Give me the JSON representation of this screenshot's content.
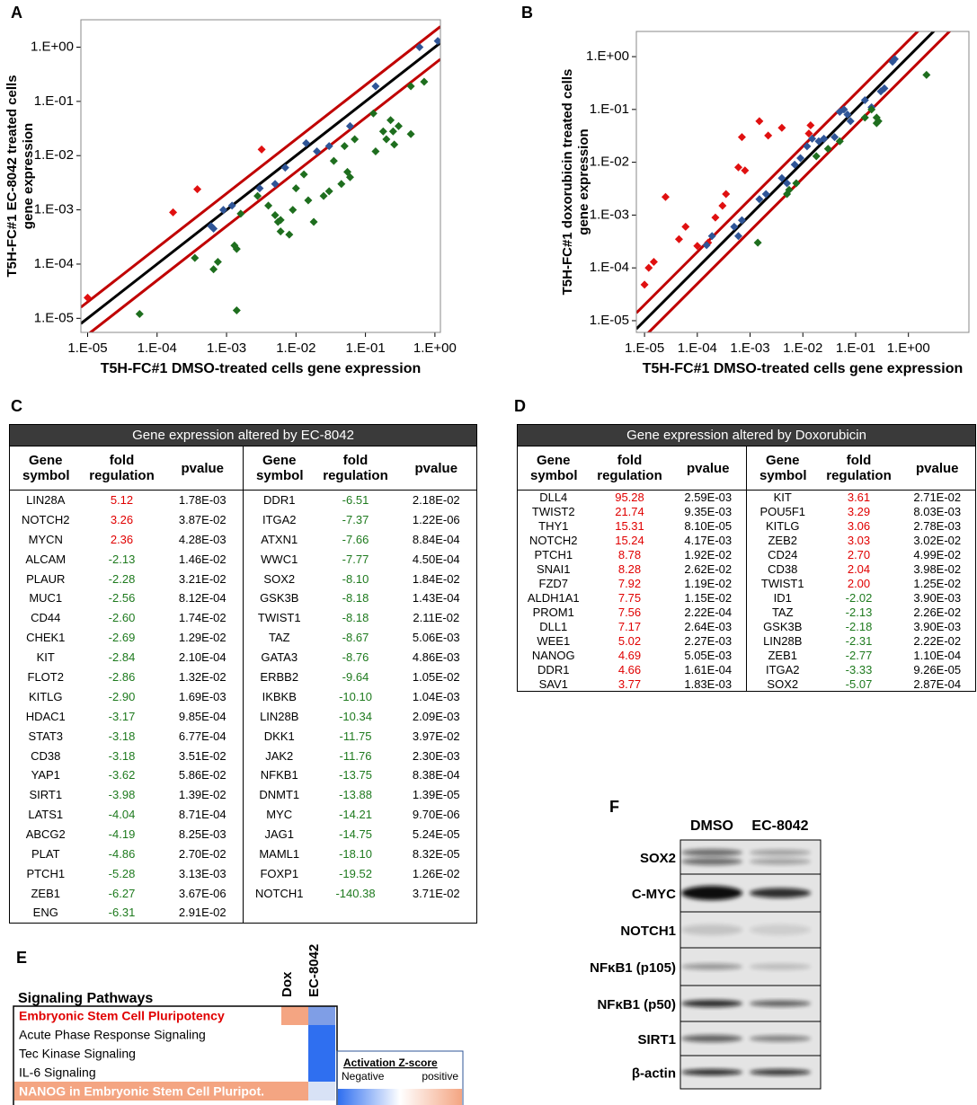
{
  "figure_labels": [
    "A",
    "B",
    "C",
    "D",
    "E",
    "F"
  ],
  "chart_data": [
    {
      "type": "scatter",
      "xlabel": "T5H-FC#1 DMSO-treated cells gene expression",
      "ylabel": [
        "T5H-FC#1 EC-8042 treated cells",
        "gene expression"
      ],
      "log_x": true,
      "log_y": true,
      "xlim": [
        8e-06,
        1.2
      ],
      "ylim": [
        5.5e-06,
        3.2
      ],
      "xticks": [
        {
          "value": 1e-05,
          "label": "1.E-05"
        },
        {
          "value": 0.0001,
          "label": "1.E-04"
        },
        {
          "value": 0.001,
          "label": "1.E-03"
        },
        {
          "value": 0.01,
          "label": "1.E-02"
        },
        {
          "value": 0.1,
          "label": "1.E-01"
        },
        {
          "value": 1,
          "label": "1.E+00"
        }
      ],
      "yticks": [
        {
          "value": 1e-05,
          "label": "1.E-05"
        },
        {
          "value": 0.0001,
          "label": "1.E-04"
        },
        {
          "value": 0.001,
          "label": "1.E-03"
        },
        {
          "value": 0.01,
          "label": "1.E-02"
        },
        {
          "value": 0.1,
          "label": "1.E-01"
        },
        {
          "value": 1,
          "label": "1.E+00"
        }
      ],
      "series": [
        {
          "color": "#e01010",
          "x": [
            1e-05,
            0.00017,
            0.00038,
            0.0032
          ],
          "values": [
            2.4e-05,
            0.0009,
            0.0024,
            0.013
          ]
        },
        {
          "color": "#2f5597",
          "x": [
            0.0006,
            0.00065,
            0.0009,
            0.0012,
            0.003,
            0.005,
            0.007,
            0.014,
            0.02,
            0.03,
            0.06,
            0.14,
            0.6,
            1.1
          ],
          "values": [
            0.0005,
            0.00045,
            0.001,
            0.0012,
            0.0025,
            0.003,
            0.006,
            0.017,
            0.012,
            0.015,
            0.035,
            0.19,
            1,
            1.3
          ]
        },
        {
          "color": "#1e6e1e",
          "x": [
            5.6e-05,
            0.00035,
            0.00065,
            0.00075,
            0.0014,
            0.0013,
            0.0014,
            0.0016,
            0.0028,
            0.004,
            0.005,
            0.0055,
            0.006,
            0.006,
            0.008,
            0.009,
            0.01,
            0.013,
            0.015,
            0.018,
            0.025,
            0.03,
            0.035,
            0.045,
            0.05,
            0.055,
            0.06,
            0.07,
            0.13,
            0.14,
            0.18,
            0.2,
            0.23,
            0.25,
            0.26,
            0.3,
            0.45,
            0.45,
            0.7
          ],
          "values": [
            1.2e-05,
            0.00013,
            8e-05,
            0.00011,
            1.4e-05,
            0.00022,
            0.00019,
            0.00085,
            0.0018,
            0.0012,
            0.0008,
            0.0006,
            0.0004,
            0.00065,
            0.00035,
            0.001,
            0.0025,
            0.0045,
            0.0015,
            0.0006,
            0.0018,
            0.0022,
            0.008,
            0.003,
            0.015,
            0.005,
            0.004,
            0.02,
            0.06,
            0.012,
            0.028,
            0.02,
            0.045,
            0.028,
            0.016,
            0.035,
            0.025,
            0.19,
            0.23
          ]
        }
      ]
    },
    {
      "type": "scatter",
      "xlabel": "T5H-FC#1 DMSO-treated cells gene expression",
      "ylabel": [
        "T5H-FC#1 doxorubicin  treated cells",
        "gene expression"
      ],
      "log_x": true,
      "log_y": true,
      "xlim": [
        7e-06,
        14
      ],
      "ylim": [
        6e-06,
        3
      ],
      "xticks": [
        {
          "value": 1e-05,
          "label": "1.E-05"
        },
        {
          "value": 0.0001,
          "label": "1.E-04"
        },
        {
          "value": 0.001,
          "label": "1.E-03"
        },
        {
          "value": 0.01,
          "label": "1.E-02"
        },
        {
          "value": 0.1,
          "label": "1.E-01"
        },
        {
          "value": 1,
          "label": "1.E+00"
        }
      ],
      "yticks": [
        {
          "value": 1e-05,
          "label": "1.E-05"
        },
        {
          "value": 0.0001,
          "label": "1.E-04"
        },
        {
          "value": 0.001,
          "label": "1.E-03"
        },
        {
          "value": 0.01,
          "label": "1.E-02"
        },
        {
          "value": 0.1,
          "label": "1.E-01"
        },
        {
          "value": 1,
          "label": "1.E+00"
        }
      ],
      "series": [
        {
          "color": "#e01010",
          "x": [
            1e-05,
            1.2e-05,
            1.5e-05,
            2.5e-05,
            4.5e-05,
            6e-05,
            0.0001,
            0.00016,
            0.00022,
            0.0003,
            0.00035,
            0.0006,
            0.0007,
            0.0008,
            0.0015,
            0.0022,
            0.004,
            0.013,
            0.014
          ],
          "values": [
            4.8e-05,
            0.0001,
            0.00013,
            0.0022,
            0.00035,
            0.0006,
            0.00026,
            0.0003,
            0.0009,
            0.0015,
            0.0025,
            0.008,
            0.03,
            0.007,
            0.06,
            0.032,
            0.045,
            0.035,
            0.05
          ]
        },
        {
          "color": "#2f5597",
          "x": [
            0.00015,
            0.00019,
            0.0005,
            0.0006,
            0.0007,
            0.0015,
            0.002,
            0.004,
            0.005,
            0.007,
            0.009,
            0.012,
            0.015,
            0.02,
            0.025,
            0.04,
            0.05,
            0.06,
            0.07,
            0.08,
            0.15,
            0.2,
            0.3,
            0.35,
            0.5,
            0.55
          ],
          "values": [
            0.00027,
            0.0004,
            0.0006,
            0.0004,
            0.0008,
            0.002,
            0.0025,
            0.005,
            0.004,
            0.009,
            0.012,
            0.02,
            0.028,
            0.025,
            0.028,
            0.03,
            0.09,
            0.1,
            0.08,
            0.06,
            0.15,
            0.11,
            0.22,
            0.25,
            0.8,
            0.9
          ]
        },
        {
          "color": "#1e6e1e",
          "x": [
            0.0014,
            0.005,
            0.0055,
            0.0075,
            0.018,
            0.03,
            0.05,
            0.15,
            0.2,
            0.25,
            0.25,
            0.27,
            2.2
          ],
          "values": [
            0.0003,
            0.0025,
            0.003,
            0.004,
            0.013,
            0.018,
            0.025,
            0.07,
            0.1,
            0.055,
            0.07,
            0.06,
            0.45
          ]
        }
      ]
    }
  ],
  "table_c": {
    "title": "Gene expression altered by EC-8042",
    "columns": [
      "Gene symbol",
      "fold regulation",
      "pvalue"
    ],
    "halves": [
      {
        "rows": [
          [
            "LIN28A",
            "5.12",
            "1.78E-03"
          ],
          [
            "NOTCH2",
            "3.26",
            "3.87E-02"
          ],
          [
            "MYCN",
            "2.36",
            "4.28E-03"
          ],
          [
            "ALCAM",
            "-2.13",
            "1.46E-02"
          ],
          [
            "PLAUR",
            "-2.28",
            "3.21E-02"
          ],
          [
            "MUC1",
            "-2.56",
            "8.12E-04"
          ],
          [
            "CD44",
            "-2.60",
            "1.74E-02"
          ],
          [
            "CHEK1",
            "-2.69",
            "1.29E-02"
          ],
          [
            "KIT",
            "-2.84",
            "2.10E-04"
          ],
          [
            "FLOT2",
            "-2.86",
            "1.32E-02"
          ],
          [
            "KITLG",
            "-2.90",
            "1.69E-03"
          ],
          [
            "HDAC1",
            "-3.17",
            "9.85E-04"
          ],
          [
            "STAT3",
            "-3.18",
            "6.77E-04"
          ],
          [
            "CD38",
            "-3.18",
            "3.51E-02"
          ],
          [
            "YAP1",
            "-3.62",
            "5.86E-02"
          ],
          [
            "SIRT1",
            "-3.98",
            "1.39E-02"
          ],
          [
            "LATS1",
            "-4.04",
            "8.71E-04"
          ],
          [
            "ABCG2",
            "-4.19",
            "8.25E-03"
          ],
          [
            "PLAT",
            "-4.86",
            "2.70E-02"
          ],
          [
            "PTCH1",
            "-5.28",
            "3.13E-03"
          ],
          [
            "ZEB1",
            "-6.27",
            "3.67E-06"
          ],
          [
            "ENG",
            "-6.31",
            "2.91E-02"
          ]
        ]
      },
      {
        "rows": [
          [
            "DDR1",
            "-6.51",
            "2.18E-02"
          ],
          [
            "ITGA2",
            "-7.37",
            "1.22E-06"
          ],
          [
            "ATXN1",
            "-7.66",
            "8.84E-04"
          ],
          [
            "WWC1",
            "-7.77",
            "4.50E-04"
          ],
          [
            "SOX2",
            "-8.10",
            "1.84E-02"
          ],
          [
            "GSK3B",
            "-8.18",
            "1.43E-04"
          ],
          [
            "TWIST1",
            "-8.18",
            "2.11E-02"
          ],
          [
            "TAZ",
            "-8.67",
            "5.06E-03"
          ],
          [
            "GATA3",
            "-8.76",
            "4.86E-03"
          ],
          [
            "ERBB2",
            "-9.64",
            "1.05E-02"
          ],
          [
            "IKBKB",
            "-10.10",
            "1.04E-03"
          ],
          [
            "LIN28B",
            "-10.34",
            "2.09E-03"
          ],
          [
            "DKK1",
            "-11.75",
            "3.97E-02"
          ],
          [
            "JAK2",
            "-11.76",
            "2.30E-03"
          ],
          [
            "NFKB1",
            "-13.75",
            "8.38E-04"
          ],
          [
            "DNMT1",
            "-13.88",
            "1.39E-05"
          ],
          [
            "MYC",
            "-14.21",
            "9.70E-06"
          ],
          [
            "JAG1",
            "-14.75",
            "5.24E-05"
          ],
          [
            "MAML1",
            "-18.10",
            "8.32E-05"
          ],
          [
            "FOXP1",
            "-19.52",
            "1.26E-02"
          ],
          [
            "NOTCH1",
            "-140.38",
            "3.71E-02"
          ]
        ]
      }
    ]
  },
  "table_d": {
    "title": "Gene expression altered by Doxorubicin",
    "columns": [
      "Gene symbol",
      "fold regulation",
      "pvalue"
    ],
    "halves": [
      {
        "rows": [
          [
            "DLL4",
            "95.28",
            "2.59E-03"
          ],
          [
            "TWIST2",
            "21.74",
            "9.35E-03"
          ],
          [
            "THY1",
            "15.31",
            "8.10E-05"
          ],
          [
            "NOTCH2",
            "15.24",
            "4.17E-03"
          ],
          [
            "PTCH1",
            "8.78",
            "1.92E-02"
          ],
          [
            "SNAI1",
            "8.28",
            "2.62E-02"
          ],
          [
            "FZD7",
            "7.92",
            "1.19E-02"
          ],
          [
            "ALDH1A1",
            "7.75",
            "1.15E-02"
          ],
          [
            "PROM1",
            "7.56",
            "2.22E-04"
          ],
          [
            "DLL1",
            "7.17",
            "2.64E-03"
          ],
          [
            "WEE1",
            "5.02",
            "2.27E-03"
          ],
          [
            "NANOG",
            "4.69",
            "5.05E-03"
          ],
          [
            "DDR1",
            "4.66",
            "1.61E-04"
          ],
          [
            "SAV1",
            "3.77",
            "1.83E-03"
          ]
        ]
      },
      {
        "rows": [
          [
            "KIT",
            "3.61",
            "2.71E-02"
          ],
          [
            "POU5F1",
            "3.29",
            "8.03E-03"
          ],
          [
            "KITLG",
            "3.06",
            "2.78E-03"
          ],
          [
            "ZEB2",
            "3.03",
            "3.02E-02"
          ],
          [
            "CD24",
            "2.70",
            "4.99E-02"
          ],
          [
            "CD38",
            "2.04",
            "3.98E-02"
          ],
          [
            "TWIST1",
            "2.00",
            "1.25E-02"
          ],
          [
            "ID1",
            "-2.02",
            "3.90E-03"
          ],
          [
            "TAZ",
            "-2.13",
            "2.26E-02"
          ],
          [
            "GSK3B",
            "-2.18",
            "3.90E-03"
          ],
          [
            "LIN28B",
            "-2.31",
            "2.22E-02"
          ],
          [
            "ZEB1",
            "-2.77",
            "1.10E-04"
          ],
          [
            "ITGA2",
            "-3.33",
            "9.26E-05"
          ],
          [
            "SOX2",
            "-5.07",
            "2.87E-04"
          ]
        ]
      }
    ]
  },
  "panel_e": {
    "title": "Signaling Pathways",
    "columns": [
      "Dox",
      "EC-8042"
    ],
    "rows": [
      {
        "label": "Embryonic Stem Cell Pluripotency",
        "highlight": true,
        "colors": [
          "#f4a582",
          "#7f9ee6"
        ]
      },
      {
        "label": "Acute Phase Response Signaling",
        "highlight": false,
        "colors": [
          "#ffffff",
          "#2f6ff0"
        ]
      },
      {
        "label": "Tec Kinase Signaling",
        "highlight": false,
        "colors": [
          "#ffffff",
          "#2f6ff0"
        ]
      },
      {
        "label": "IL-6 Signaling",
        "highlight": false,
        "colors": [
          "#ffffff",
          "#2f6ff0"
        ]
      },
      {
        "label": "NANOG in Embryonic Stem Cell Pluripot.",
        "highlight": true,
        "colors": [
          "#f4a582",
          "#d8e2f6"
        ]
      }
    ],
    "legend": {
      "title": "Activation Z-score",
      "low": "Negative",
      "high": "positive",
      "colors": [
        "#2f6ff0",
        "#ffffff",
        "#f4a582"
      ]
    }
  },
  "panel_f": {
    "columns": [
      "DMSO",
      "EC-8042"
    ],
    "rows": [
      "SOX2",
      "C-MYC",
      "NOTCH1",
      "NFκB1 (p105)",
      "NFκB1 (p50)",
      "SIRT1",
      "β-actin"
    ]
  }
}
